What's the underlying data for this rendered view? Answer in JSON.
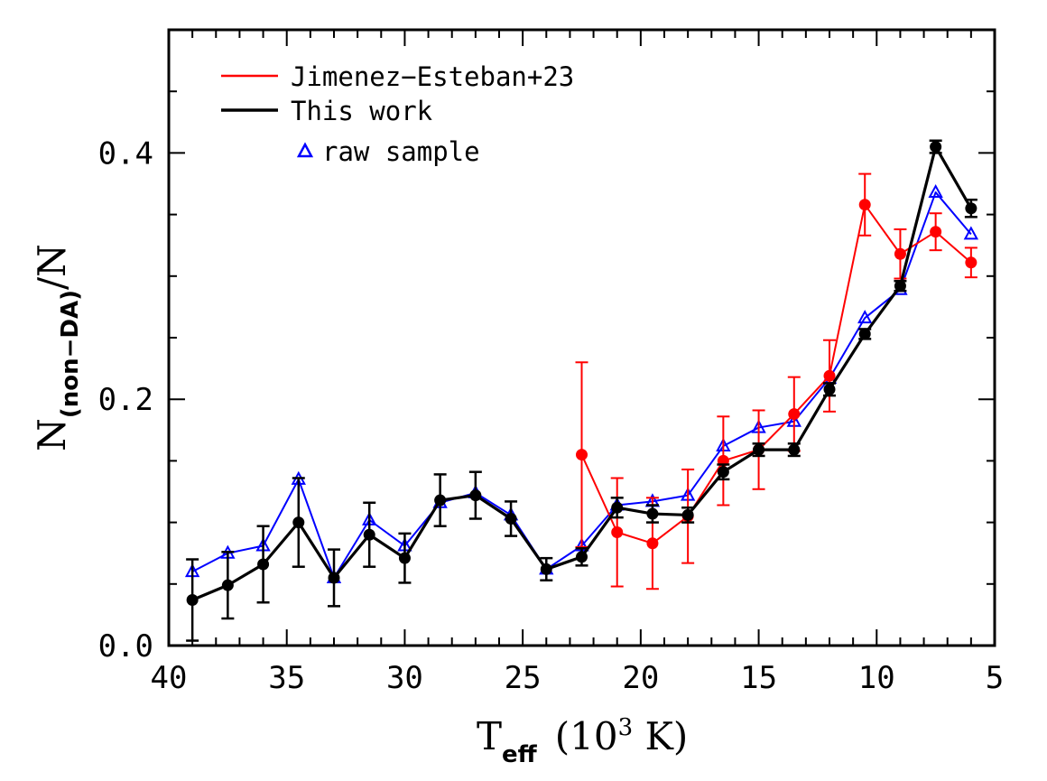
{
  "chart_data": {
    "type": "line",
    "xlabel": {
      "main": "T",
      "subscript": "eff",
      "units": "(10",
      "units_exp": "3",
      "units_end": " K)"
    },
    "ylabel": {
      "main": "N",
      "subscript": "(non−DA)",
      "suffix": "/N"
    },
    "xlim": [
      40,
      5
    ],
    "ylim": [
      0.0,
      0.5
    ],
    "x_reversed": true,
    "x_ticks": [
      "40",
      "35",
      "30",
      "25",
      "20",
      "15",
      "10",
      "5"
    ],
    "y_ticks": [
      "0.0",
      "0.2",
      "0.4"
    ],
    "grid": false,
    "legend_position": "top-left",
    "legend": {
      "jimenez": "Jimenez−Esteban+23",
      "this_work": "This work",
      "raw": "raw sample"
    },
    "series": [
      {
        "key": "this_work",
        "name": "This work",
        "color": "#000000",
        "marker": "filled-circle",
        "x": [
          39,
          37.5,
          36,
          34.5,
          33,
          31.5,
          30,
          28.5,
          27,
          25.5,
          24,
          22.5,
          21,
          19.5,
          18,
          16.5,
          15,
          13.5,
          12,
          10.5,
          9,
          7.5,
          6
        ],
        "y": [
          0.037,
          0.049,
          0.066,
          0.1,
          0.055,
          0.09,
          0.071,
          0.118,
          0.122,
          0.103,
          0.062,
          0.072,
          0.112,
          0.107,
          0.106,
          0.141,
          0.159,
          0.159,
          0.208,
          0.253,
          0.292,
          0.405,
          0.355
        ],
        "err": [
          0.033,
          0.027,
          0.031,
          0.036,
          0.023,
          0.026,
          0.02,
          0.021,
          0.019,
          0.014,
          0.009,
          0.007,
          0.008,
          0.007,
          0.006,
          0.006,
          0.005,
          0.005,
          0.005,
          0.004,
          0.004,
          0.005,
          0.007
        ]
      },
      {
        "key": "raw",
        "name": "raw sample",
        "color": "#0000ff",
        "marker": "open-triangle",
        "x": [
          39,
          37.5,
          36,
          34.5,
          33,
          31.5,
          30,
          28.5,
          27,
          25.5,
          24,
          22.5,
          21,
          19.5,
          18,
          16.5,
          15,
          13.5,
          12,
          10.5,
          9,
          7.5,
          6
        ],
        "y": [
          0.06,
          0.075,
          0.081,
          0.135,
          0.055,
          0.102,
          0.081,
          0.116,
          0.124,
          0.106,
          0.062,
          0.081,
          0.114,
          0.117,
          0.122,
          0.162,
          0.177,
          0.182,
          0.217,
          0.266,
          0.289,
          0.368,
          0.334
        ]
      },
      {
        "key": "jimenez",
        "name": "Jimenez−Esteban+23",
        "color": "#ff0000",
        "marker": "filled-circle",
        "x": [
          22.5,
          21,
          19.5,
          18,
          16.5,
          15,
          13.5,
          12,
          10.5,
          9,
          7.5,
          6
        ],
        "y": [
          0.155,
          0.092,
          0.083,
          0.105,
          0.15,
          0.159,
          0.188,
          0.219,
          0.358,
          0.318,
          0.336,
          0.311
        ],
        "err": [
          0.075,
          0.044,
          0.037,
          0.038,
          0.036,
          0.032,
          0.03,
          0.029,
          0.025,
          0.02,
          0.015,
          0.012
        ]
      }
    ]
  }
}
